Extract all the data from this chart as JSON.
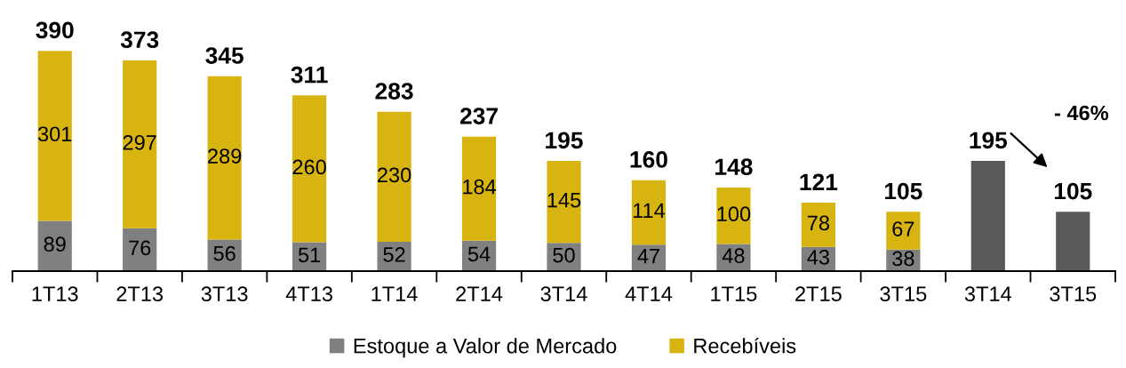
{
  "chart_data": {
    "type": "bar",
    "stacked": true,
    "categories": [
      "1T13",
      "2T13",
      "3T13",
      "4T13",
      "1T14",
      "2T14",
      "3T14",
      "4T14",
      "1T15",
      "2T15",
      "3T15",
      "3T14",
      "3T15"
    ],
    "series": [
      {
        "name": "Estoque a Valor de Mercado",
        "color": "#808080",
        "values": [
          89,
          76,
          56,
          51,
          52,
          54,
          50,
          47,
          48,
          43,
          38,
          null,
          null
        ],
        "value_labels": [
          "89",
          "76",
          "56",
          "51",
          "52",
          "54",
          "50",
          "47",
          "48",
          "43",
          "38",
          null,
          null
        ]
      },
      {
        "name": "Recebíveis",
        "color": "#d8b411",
        "values": [
          301,
          297,
          289,
          260,
          230,
          184,
          145,
          114,
          100,
          78,
          67,
          null,
          null
        ],
        "value_labels": [
          "301",
          "297",
          "289",
          "260",
          "230",
          "184",
          "145",
          "114",
          "100",
          "78",
          "67",
          null,
          null
        ]
      },
      {
        "color": "#595959",
        "values": [
          null,
          null,
          null,
          null,
          null,
          null,
          null,
          null,
          null,
          null,
          null,
          195,
          105
        ]
      }
    ],
    "totals": [
      "390",
      "373",
      "345",
      "311",
      "283",
      "237",
      "195",
      "160",
      "148",
      "121",
      "105",
      "195",
      "105"
    ],
    "annotations": [
      "- 46%"
    ],
    "legend": "bottom",
    "grid": false
  }
}
